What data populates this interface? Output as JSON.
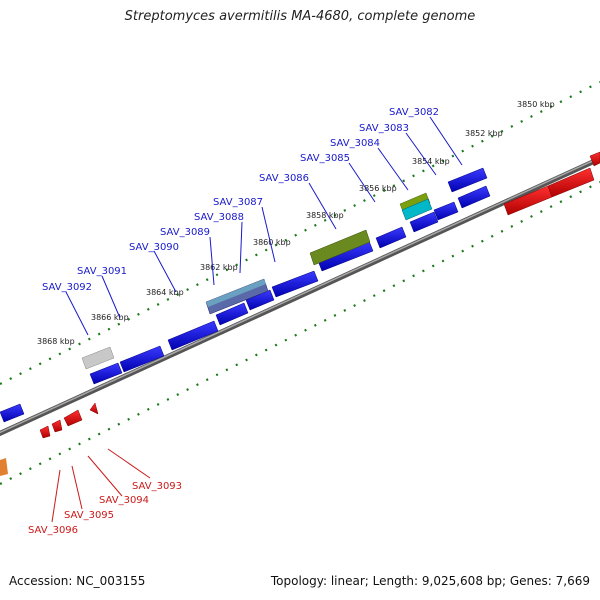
{
  "title": "Streptomyces avermitilis MA-4680, complete genome",
  "footer": {
    "accession": "Accession: NC_003155",
    "summary": "Topology: linear; Length: 9,025,608 bp; Genes: 7,669"
  },
  "ticks": [
    "3850 kbp",
    "3852 kbp",
    "3854 kbp",
    "3856 kbp",
    "3858 kbp",
    "3860 kbp",
    "3862 kbp",
    "3864 kbp",
    "3866 kbp",
    "3868 kbp"
  ],
  "genes_top": [
    "SAV_3082",
    "SAV_3083",
    "SAV_3084",
    "SAV_3085",
    "SAV_3086",
    "SAV_3087",
    "SAV_3088",
    "SAV_3089",
    "SAV_3090",
    "SAV_3091",
    "SAV_3092"
  ],
  "genes_bottom": [
    "SAV_3093",
    "SAV_3094",
    "SAV_3095",
    "SAV_3096"
  ],
  "colors": {
    "forward": "#1010e0",
    "reverse": "#e01010",
    "backbone": "#6b6b6b",
    "tick": "#1a7a1a"
  }
}
